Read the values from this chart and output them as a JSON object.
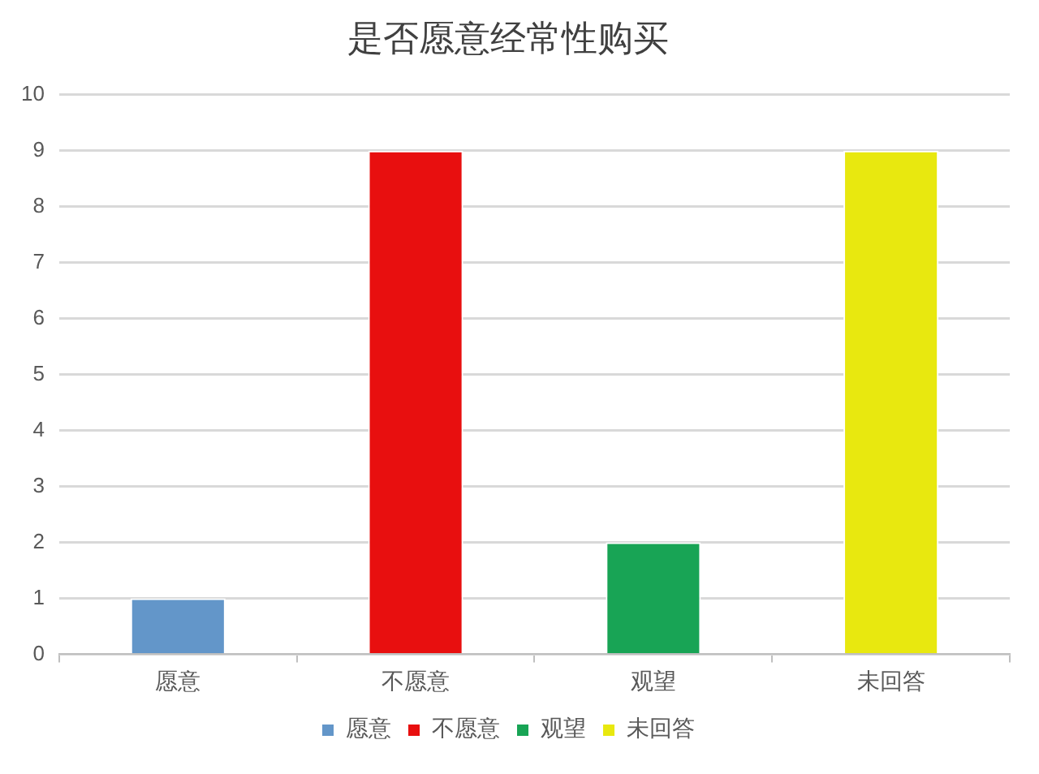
{
  "chart_data": {
    "type": "bar",
    "title": "是否愿意经常性购买",
    "categories": [
      "愿意",
      "不愿意",
      "观望",
      "未回答"
    ],
    "series": [
      {
        "name": "愿意",
        "color": "#6396c9",
        "values": [
          1,
          null,
          null,
          null
        ]
      },
      {
        "name": "不愿意",
        "color": "#e80f0f",
        "values": [
          null,
          9,
          null,
          null
        ]
      },
      {
        "name": "观望",
        "color": "#18a455",
        "values": [
          null,
          null,
          2,
          null
        ]
      },
      {
        "name": "未回答",
        "color": "#e8e80f",
        "values": [
          null,
          null,
          null,
          9
        ]
      }
    ],
    "ylim": [
      0,
      10
    ],
    "yticks": [
      0,
      1,
      2,
      3,
      4,
      5,
      6,
      7,
      8,
      9,
      10
    ],
    "grid": "y",
    "legend": "bottom"
  }
}
